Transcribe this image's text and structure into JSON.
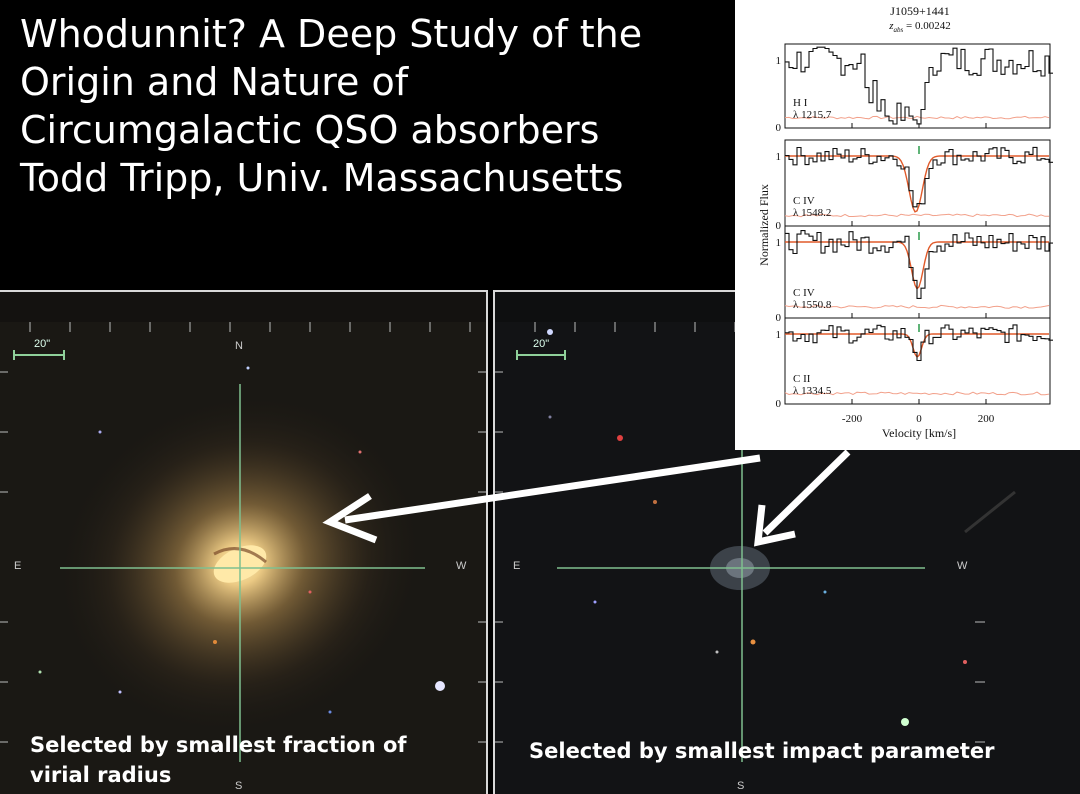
{
  "title": {
    "lines": [
      "Whodunnit? A Deep Study of the",
      "Origin and Nature of",
      "Circumgalactic QSO absorbers",
      "Todd Tripp, Univ. Massachusetts"
    ]
  },
  "left_image": {
    "scale_label": "20\"",
    "compass": {
      "n": "N",
      "e": "E",
      "w": "W",
      "s": "S"
    },
    "caption_lines": [
      "Selected by smallest fraction of",
      "virial radius"
    ]
  },
  "right_image": {
    "scale_label": "20\"",
    "compass": {
      "e": "E",
      "w": "W",
      "s": "S"
    },
    "caption_lines": [
      "Selected by smallest impact parameter"
    ]
  },
  "spectrum_figure": {
    "title": "J1059+1441",
    "subtitle": "z",
    "subtitle_sub": "abs",
    "subtitle_value": " = 0.00242",
    "ylabel": "Normalized Flux",
    "xlabel": "Velocity [km/s]",
    "xticks": [
      "-200",
      "0",
      "200"
    ],
    "panels": [
      {
        "ion": "H I",
        "wavelength": "λ 1215.7"
      },
      {
        "ion": "C IV",
        "wavelength": "λ 1548.2"
      },
      {
        "ion": "C IV",
        "wavelength": "λ 1550.8"
      },
      {
        "ion": "C II",
        "wavelength": "λ 1334.5"
      }
    ],
    "ytick_top": "1",
    "ytick_bottom": "0",
    "colors": {
      "data": "#111111",
      "fit": "#e05a2a",
      "error": "#f2a08a",
      "marker": "#2a9a4a"
    }
  }
}
